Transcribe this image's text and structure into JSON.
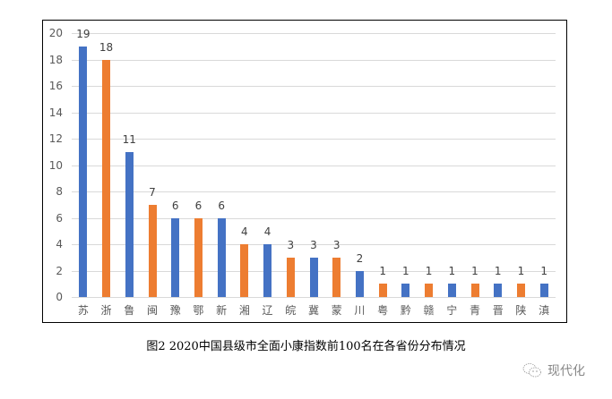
{
  "chart_data": {
    "type": "bar",
    "title": "",
    "xlabel": "",
    "ylabel": "",
    "ylim": [
      0,
      20
    ],
    "yticks": [
      0,
      2,
      4,
      6,
      8,
      10,
      12,
      14,
      16,
      18,
      20
    ],
    "grid": true,
    "legend": null,
    "data_labels": true,
    "categories": [
      "苏",
      "浙",
      "鲁",
      "闽",
      "豫",
      "鄂",
      "新",
      "湘",
      "辽",
      "皖",
      "冀",
      "蒙",
      "川",
      "粤",
      "黔",
      "赣",
      "宁",
      "青",
      "晋",
      "陕",
      "滇"
    ],
    "values": [
      19,
      18,
      11,
      7,
      6,
      6,
      6,
      4,
      4,
      3,
      3,
      3,
      2,
      1,
      1,
      1,
      1,
      1,
      1,
      1,
      1
    ],
    "bar_colors": [
      "#4472C4",
      "#ED7D31",
      "#4472C4",
      "#ED7D31",
      "#4472C4",
      "#ED7D31",
      "#4472C4",
      "#ED7D31",
      "#4472C4",
      "#ED7D31",
      "#4472C4",
      "#ED7D31",
      "#4472C4",
      "#ED7D31",
      "#4472C4",
      "#ED7D31",
      "#4472C4",
      "#ED7D31",
      "#4472C4",
      "#ED7D31",
      "#4472C4"
    ],
    "caption": "图2  2020中国县级市全面小康指数前100名在各省份分布情况"
  },
  "colors": {
    "blue": "#4472C4",
    "orange": "#ED7D31",
    "grid": "#D9D9D9"
  },
  "caption": "图2  2020中国县级市全面小康指数前100名在各省份分布情况",
  "watermark": {
    "icon": "wechat-icon",
    "text": "现代化"
  }
}
